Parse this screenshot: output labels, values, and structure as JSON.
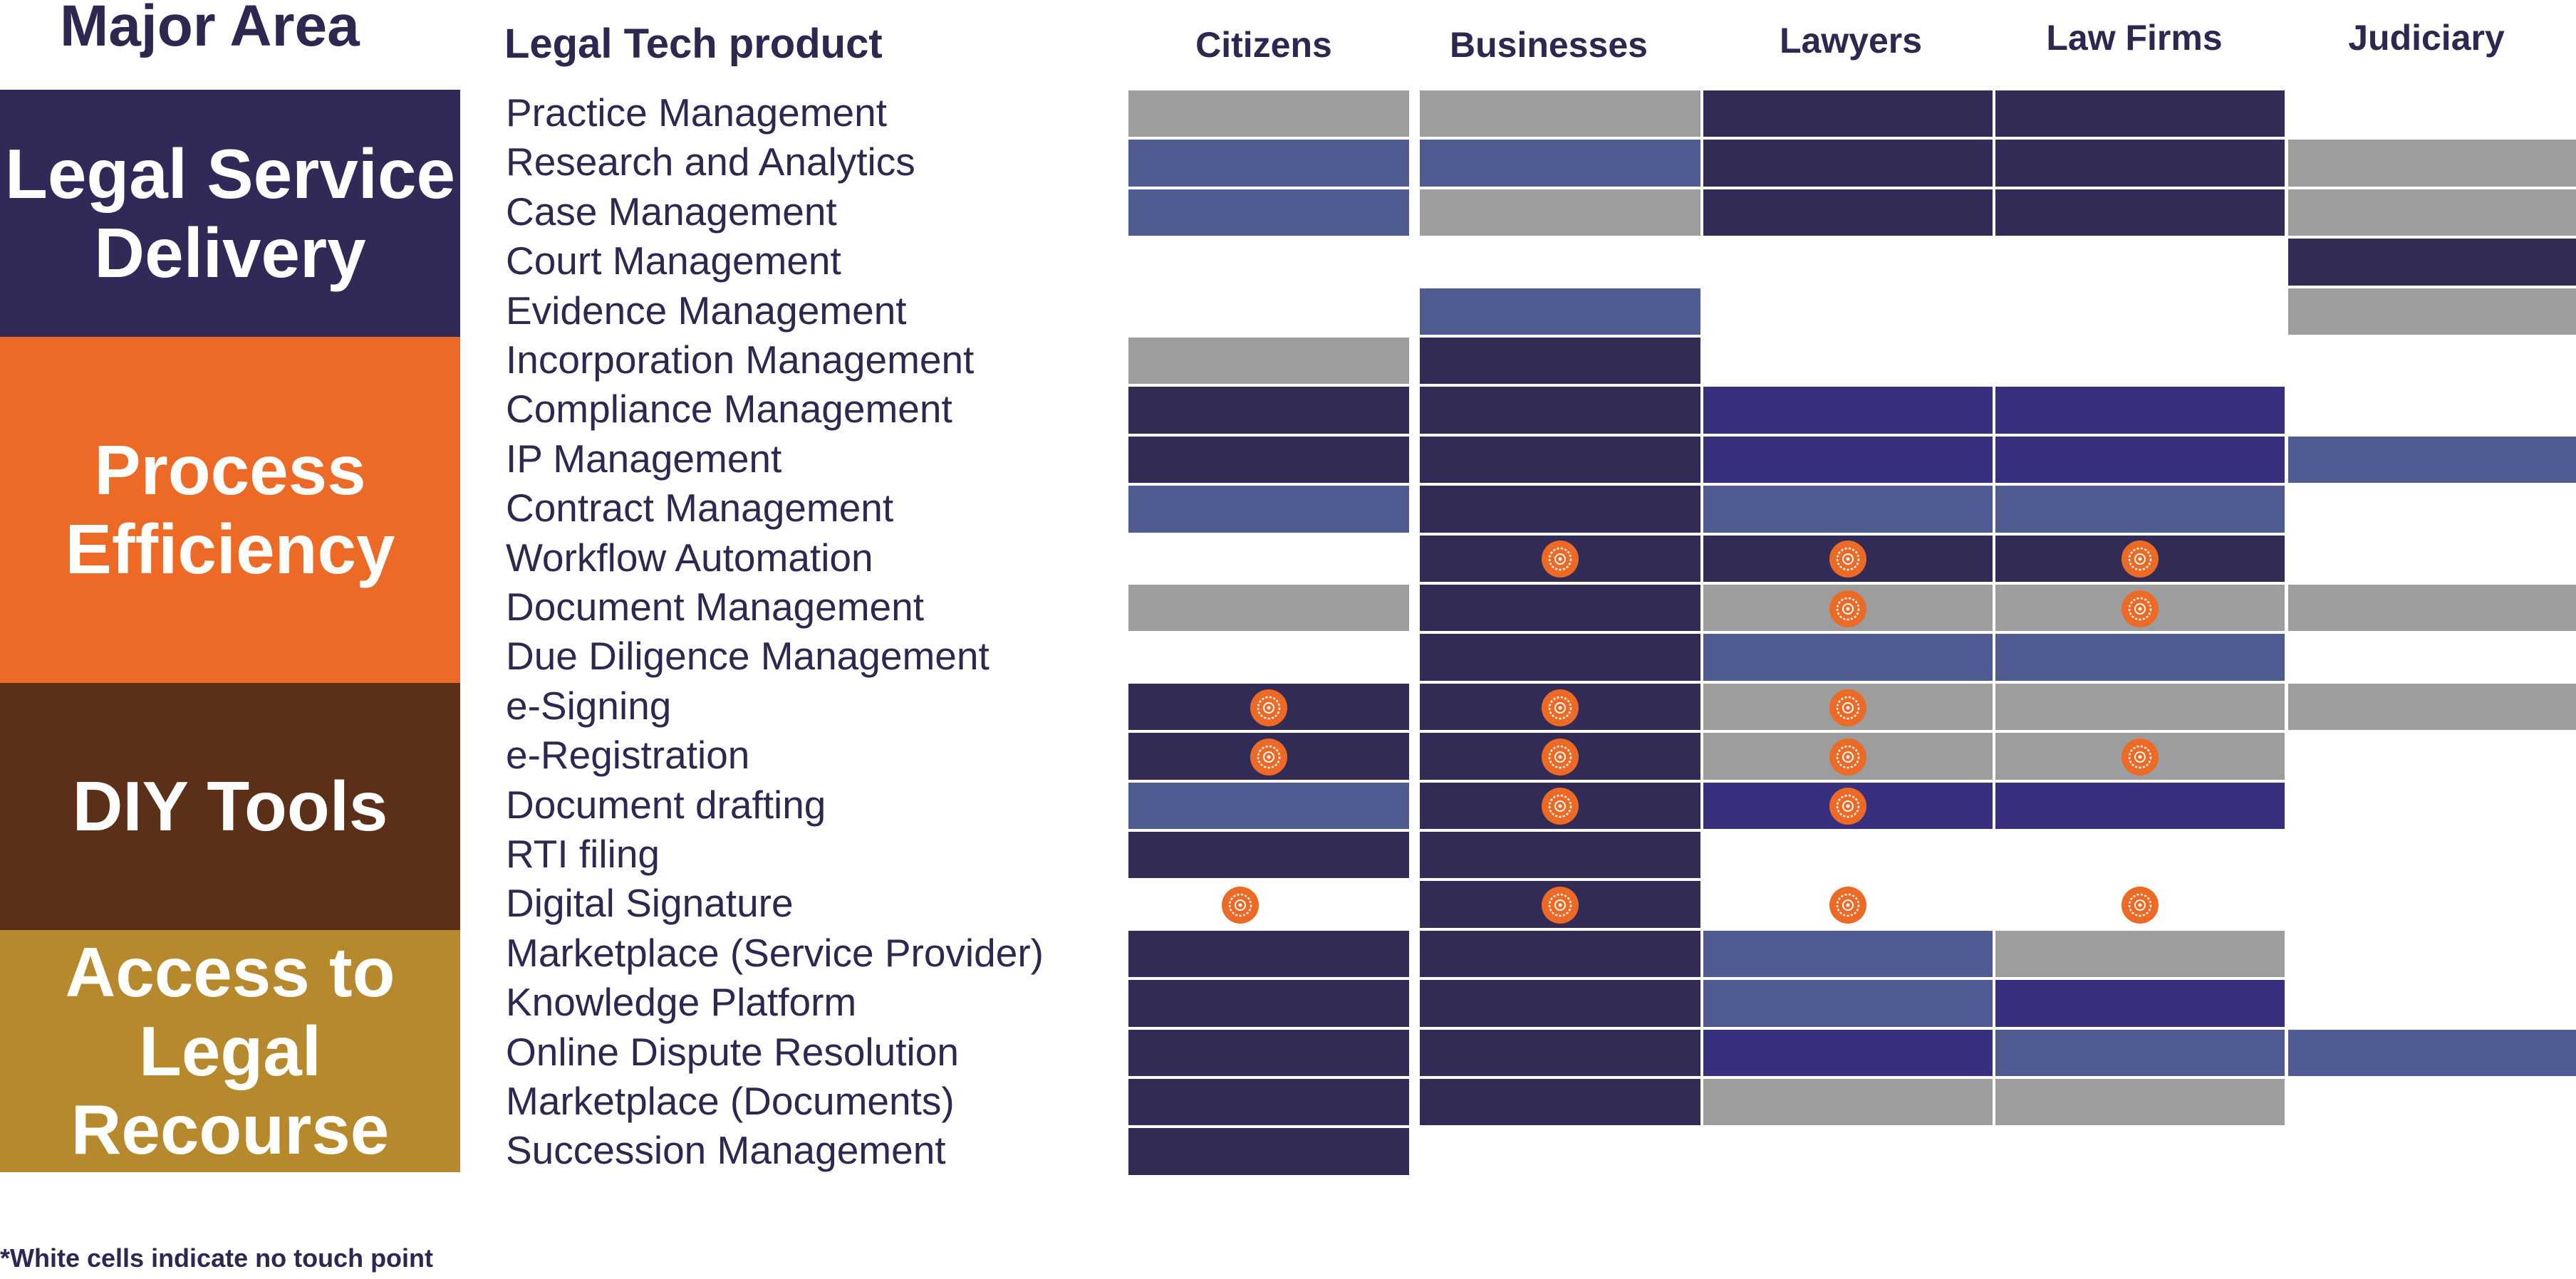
{
  "header": {
    "major_area": "Major Area",
    "product": "Legal Tech product",
    "columns": [
      "Citizens",
      "Businesses",
      "Lawyers",
      "Law Firms",
      "Judiciary"
    ]
  },
  "areas": [
    {
      "label": "Legal Service\nDelivery",
      "color": "#2f2a57",
      "first_row": 0,
      "last_row": 4
    },
    {
      "label": "Process\nEfficiency",
      "color": "#ec6a25",
      "first_row": 5,
      "last_row": 11
    },
    {
      "label": "DIY Tools",
      "color": "#5c3018",
      "first_row": 12,
      "last_row": 16
    },
    {
      "label": "Access to\nLegal\nRecourse",
      "color": "#b5892c",
      "first_row": 17,
      "last_row": 21
    }
  ],
  "colors": {
    "N": "#312b55",
    "B": "#505b92",
    "P": "#38307f",
    "G": "#9d9d9d",
    "marker": "#ec6a25"
  },
  "rows": [
    {
      "label": "Practice Management",
      "cells": [
        "G",
        "G",
        "N",
        "N",
        "-"
      ],
      "markers": [
        0,
        0,
        0,
        0,
        0
      ]
    },
    {
      "label": "Research and Analytics",
      "cells": [
        "B",
        "B",
        "N",
        "N",
        "G"
      ],
      "markers": [
        0,
        0,
        0,
        0,
        0
      ]
    },
    {
      "label": "Case Management",
      "cells": [
        "B",
        "G",
        "N",
        "N",
        "G"
      ],
      "markers": [
        0,
        0,
        0,
        0,
        0
      ]
    },
    {
      "label": "Court Management",
      "cells": [
        "-",
        "-",
        "-",
        "-",
        "N"
      ],
      "markers": [
        0,
        0,
        0,
        0,
        0
      ]
    },
    {
      "label": "Evidence Management",
      "cells": [
        "-",
        "B",
        "-",
        "-",
        "G"
      ],
      "markers": [
        0,
        0,
        0,
        0,
        0
      ]
    },
    {
      "label": "Incorporation Management",
      "cells": [
        "G",
        "N",
        "-",
        "-",
        "-"
      ],
      "markers": [
        0,
        0,
        0,
        0,
        0
      ]
    },
    {
      "label": "Compliance Management",
      "cells": [
        "N",
        "N",
        "P",
        "P",
        "-"
      ],
      "markers": [
        0,
        0,
        0,
        0,
        0
      ]
    },
    {
      "label": "IP Management",
      "cells": [
        "N",
        "N",
        "P",
        "P",
        "B"
      ],
      "markers": [
        0,
        0,
        0,
        0,
        0
      ]
    },
    {
      "label": "Contract Management",
      "cells": [
        "B",
        "N",
        "B",
        "B",
        "-"
      ],
      "markers": [
        0,
        0,
        0,
        0,
        0
      ]
    },
    {
      "label": "Workflow Automation",
      "cells": [
        "-",
        "N",
        "N",
        "N",
        "-"
      ],
      "markers": [
        0,
        1,
        1,
        1,
        0
      ]
    },
    {
      "label": "Document Management",
      "cells": [
        "G",
        "N",
        "G",
        "G",
        "G"
      ],
      "markers": [
        0,
        0,
        1,
        1,
        0
      ]
    },
    {
      "label": "Due Diligence Management",
      "cells": [
        "-",
        "N",
        "B",
        "B",
        "-"
      ],
      "markers": [
        0,
        0,
        0,
        0,
        0
      ]
    },
    {
      "label": "e-Signing",
      "cells": [
        "N",
        "N",
        "G",
        "G",
        "G"
      ],
      "markers": [
        1,
        1,
        1,
        0,
        0
      ]
    },
    {
      "label": "e-Registration",
      "cells": [
        "N",
        "N",
        "G",
        "G",
        "-"
      ],
      "markers": [
        1,
        1,
        1,
        1,
        0
      ]
    },
    {
      "label": "Document drafting",
      "cells": [
        "B",
        "N",
        "P",
        "P",
        "-"
      ],
      "markers": [
        0,
        1,
        1,
        0,
        0
      ]
    },
    {
      "label": "RTI filing",
      "cells": [
        "N",
        "N",
        "-",
        "-",
        "-"
      ],
      "markers": [
        0,
        0,
        0,
        0,
        0
      ]
    },
    {
      "label": "Digital Signature",
      "cells": [
        "-",
        "N",
        "-",
        "-",
        "-"
      ],
      "markers": [
        1,
        1,
        1,
        1,
        0
      ]
    },
    {
      "label": "Marketplace (Service Provider)",
      "cells": [
        "N",
        "N",
        "B",
        "G",
        "-"
      ],
      "markers": [
        0,
        0,
        0,
        0,
        0
      ]
    },
    {
      "label": "Knowledge Platform",
      "cells": [
        "N",
        "N",
        "B",
        "P",
        "-"
      ],
      "markers": [
        0,
        0,
        0,
        0,
        0
      ]
    },
    {
      "label": "Online Dispute Resolution",
      "cells": [
        "N",
        "N",
        "P",
        "B",
        "B"
      ],
      "markers": [
        0,
        0,
        0,
        0,
        0
      ]
    },
    {
      "label": "Marketplace (Documents)",
      "cells": [
        "N",
        "N",
        "G",
        "G",
        "-"
      ],
      "markers": [
        0,
        0,
        0,
        0,
        0
      ]
    },
    {
      "label": "Succession Management",
      "cells": [
        "N",
        "-",
        "-",
        "-",
        "-"
      ],
      "markers": [
        0,
        0,
        0,
        0,
        0
      ]
    }
  ],
  "footnote": "*White cells indicate no touch point"
}
